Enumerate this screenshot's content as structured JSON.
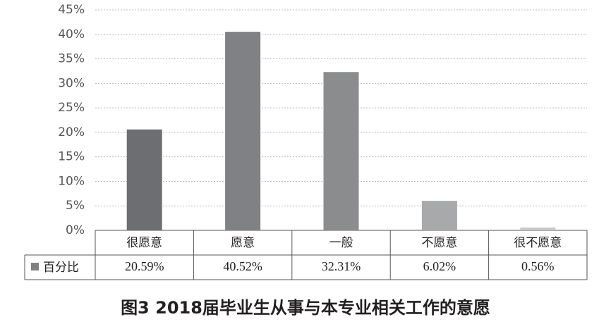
{
  "chart_data": {
    "type": "bar",
    "title": "图3  2018届毕业生从事与本专业相关工作的意愿",
    "categories": [
      "很愿意",
      "愿意",
      "一般",
      "不愿意",
      "很不愿意"
    ],
    "series": [
      {
        "name": "百分比",
        "color": "#7f8083",
        "colors": [
          "#6d6e71",
          "#808184",
          "#8b8c8e",
          "#a8a9ab",
          "#c6c7c9"
        ],
        "values": [
          20.59,
          40.52,
          32.31,
          6.02,
          0.56
        ],
        "value_labels": [
          "20.59%",
          "40.52%",
          "32.31%",
          "6.02%",
          "0.56%"
        ]
      }
    ],
    "ylim": [
      0,
      45
    ],
    "yticks": [
      {
        "value": 0,
        "label": "0%"
      },
      {
        "value": 5,
        "label": "5%"
      },
      {
        "value": 10,
        "label": "10%"
      },
      {
        "value": 15,
        "label": "15%"
      },
      {
        "value": 20,
        "label": "20%"
      },
      {
        "value": 25,
        "label": "25%"
      },
      {
        "value": 30,
        "label": "30%"
      },
      {
        "value": 35,
        "label": "35%"
      },
      {
        "value": 40,
        "label": "40%"
      },
      {
        "value": 45,
        "label": "45%"
      }
    ],
    "grid": true
  }
}
